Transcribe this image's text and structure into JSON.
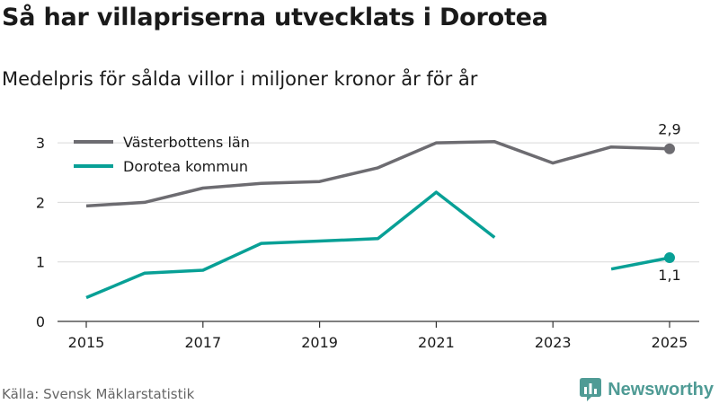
{
  "header": {
    "title": "Så har villapriserna utvecklats i Dorotea",
    "subtitle": "Medelpris för sålda villor i miljoner kronor år för år"
  },
  "footer": {
    "source": "Källa: Svensk Mäklarstatistik",
    "brand": "Newsworthy"
  },
  "colors": {
    "county": "#6d6c71",
    "municipality": "#08a096",
    "grid": "#d9d9d9",
    "axis": "#333333",
    "brand": "#4f9b95"
  },
  "icons": {
    "brand_logo": "newsworthy-logo-icon"
  },
  "chart_data": {
    "type": "line",
    "title": "Så har villapriserna utvecklats i Dorotea",
    "subtitle": "Medelpris för sålda villor i miljoner kronor år för år",
    "xlabel": "",
    "ylabel": "",
    "x": [
      2015,
      2016,
      2017,
      2018,
      2019,
      2020,
      2021,
      2022,
      2023,
      2024,
      2025
    ],
    "xticks": [
      "2015",
      "2017",
      "2019",
      "2021",
      "2023",
      "2025"
    ],
    "yticks": [
      "0",
      "1",
      "2",
      "3"
    ],
    "ylim": [
      0,
      3.3
    ],
    "grid": true,
    "legend_position": "top-left",
    "series": [
      {
        "name": "Västerbottens län",
        "color": "#6d6c71",
        "values": [
          1.94,
          2.0,
          2.24,
          2.32,
          2.35,
          2.58,
          3.0,
          3.02,
          2.66,
          2.93,
          2.9
        ],
        "end_label": "2,9"
      },
      {
        "name": "Dorotea kommun",
        "color": "#08a096",
        "values": [
          0.4,
          0.81,
          0.86,
          1.31,
          1.35,
          1.39,
          2.17,
          1.41,
          null,
          0.88,
          1.07
        ],
        "end_label": "1,1"
      }
    ]
  }
}
